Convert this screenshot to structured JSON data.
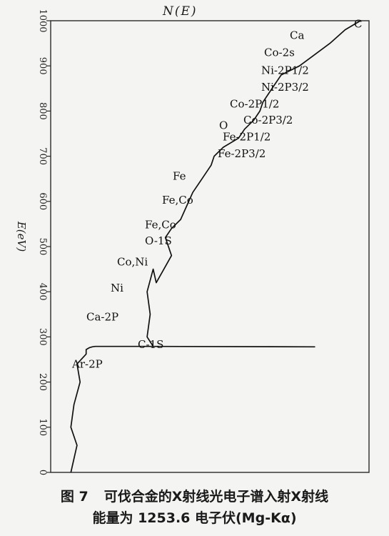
{
  "chart_data": {
    "type": "line",
    "top_label": "N(E)",
    "ylabel": "E(eV)",
    "ylim": [
      0,
      1000
    ],
    "yticks": [
      0,
      100,
      200,
      300,
      400,
      500,
      600,
      700,
      800,
      900,
      1000
    ],
    "grid": false,
    "series": [
      {
        "x": [
          0.05,
          0.06,
          0.07,
          0.05,
          0.06,
          0.08,
          0.07,
          0.1,
          0.1,
          0.11,
          0.12,
          0.13,
          0.13,
          0.14,
          0.15,
          0.28,
          0.3,
          0.85,
          0.32,
          0.3,
          0.31,
          0.3,
          0.32,
          0.33,
          0.38,
          0.36,
          0.38,
          0.41,
          0.43,
          0.45,
          0.48,
          0.51,
          0.52,
          0.55,
          0.6,
          0.62,
          0.65,
          0.67,
          0.68,
          0.7,
          0.72,
          0.74,
          0.8,
          0.84,
          0.9,
          0.95,
          1.0
        ],
        "y": [
          0,
          30,
          60,
          100,
          150,
          200,
          240,
          262,
          272,
          276,
          278,
          279,
          279,
          279,
          279,
          279,
          279,
          278,
          279,
          300,
          350,
          400,
          450,
          420,
          480,
          520,
          540,
          560,
          590,
          620,
          650,
          680,
          700,
          720,
          740,
          760,
          780,
          800,
          820,
          840,
          860,
          880,
          900,
          920,
          950,
          980,
          1000
        ]
      }
    ],
    "annotations": [
      {
        "text": "C",
        "y": 985
      },
      {
        "text": "Ca",
        "y": 960
      },
      {
        "text": "Co-2s",
        "y": 922
      },
      {
        "text": "Ni-2P1/2",
        "y": 882
      },
      {
        "text": "Ni-2P3/2",
        "y": 845
      },
      {
        "text": "Co-2P1/2",
        "y": 808
      },
      {
        "text": "O",
        "y": 760
      },
      {
        "text": "Co-2P3/2",
        "y": 772
      },
      {
        "text": "Fe-2P1/2",
        "y": 735
      },
      {
        "text": "Fe-2P3/2",
        "y": 698
      },
      {
        "text": "Fe",
        "y": 648
      },
      {
        "text": "Fe,Co",
        "y": 595
      },
      {
        "text": "Fe,Co",
        "y": 540
      },
      {
        "text": "O-1S",
        "y": 505
      },
      {
        "text": "Co,Ni",
        "y": 458
      },
      {
        "text": "Ni",
        "y": 400
      },
      {
        "text": "Ca-2P",
        "y": 336
      },
      {
        "text": "C-1S",
        "y": 275
      },
      {
        "text": "Ar-2P",
        "y": 232
      }
    ]
  },
  "caption": {
    "fig_no": "图 7",
    "line1": "可伐合金的X射线光电子谱入射X射线",
    "line2": "能量为 1253.6 电子伏(Mg-Kα)"
  }
}
